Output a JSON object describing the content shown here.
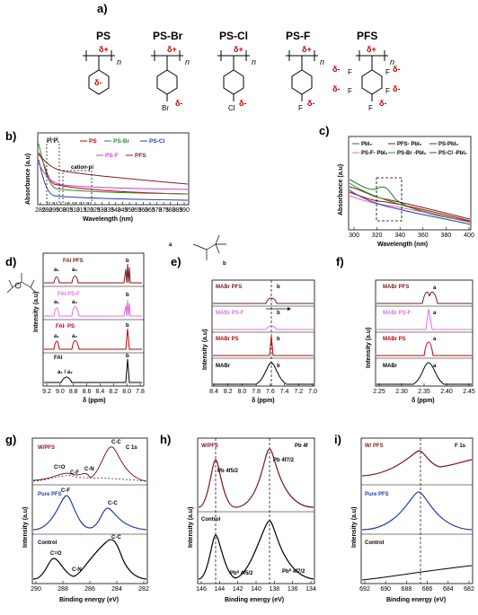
{
  "panels": {
    "a": "a)",
    "b": "b)",
    "c": "c)",
    "d": "d)",
    "e": "e)",
    "f": "f)",
    "g": "g)",
    "h": "h)",
    "i": "i)"
  },
  "structures": [
    {
      "name": "PS",
      "sub": "",
      "ring": ""
    },
    {
      "name": "PS-Br",
      "sub": "Br",
      "ring": ""
    },
    {
      "name": "PS-Cl",
      "sub": "Cl",
      "ring": ""
    },
    {
      "name": "PS-F",
      "sub": "F",
      "ring": ""
    },
    {
      "name": "PFS",
      "sub": "F",
      "ring": "F"
    }
  ],
  "delta_plus": "δ+",
  "delta_minus": "δ-",
  "n": "n",
  "b": {
    "ylabel": "Absorbance (a.u)",
    "xlabel": "Wavelength (nm)",
    "ticks": [
      "285",
      "290",
      "295",
      "300",
      "305",
      "310",
      "315",
      "320",
      "325",
      "330",
      "335",
      "340",
      "345",
      "350",
      "355",
      "360",
      "365",
      "370",
      "375",
      "380",
      "385",
      "390"
    ],
    "ann1": "pi-pi",
    "ann2": "cation-pi",
    "legend": [
      "PS",
      "PS-Br",
      "PS-Cl",
      "PS-F",
      "PFS"
    ],
    "colors": [
      "#c00000",
      "#2e8b2e",
      "#1f3fa8",
      "#d13fd1",
      "#8b1a1a"
    ]
  },
  "c": {
    "ylabel": "Absorbance (a.u)",
    "xlabel": "Wavelength (nm)",
    "ticks": [
      "300",
      "320",
      "340",
      "360",
      "380",
      "400"
    ],
    "legend": [
      "PbI₂",
      "PFS- PbI₂",
      "PS-PbI₂",
      "PS-F- PbI₂",
      "PS-Br -PbI₂",
      "PS-Cl -PbI₂"
    ],
    "colors": [
      "#1a7a1a",
      "#7a1a1a",
      "#c00000",
      "#e06ee0",
      "#2e8b2e",
      "#1f3fa8"
    ]
  },
  "d": {
    "ylabel": "Intensity (a.u)",
    "xlabel": "δ (ppm)",
    "ticks": [
      "9.2",
      "9.0",
      "8.8",
      "8.6",
      "8.4",
      "8.2",
      "8.0",
      "7.8"
    ],
    "traces": [
      "FAI PFS",
      "FAI PS-F",
      "FAI- PS",
      "FAI"
    ],
    "colors": [
      "#7a1a1a",
      "#e06ee0",
      "#c00000",
      "#000000"
    ],
    "peak_a1": "a₁",
    "peak_a2": "a₂",
    "peak_b": "b",
    "peak_a1a2": "a₁ / a₂"
  },
  "e": {
    "ylabel": "Intensity (a.u)",
    "xlabel": "δ (ppm)",
    "ticks": [
      "8.4",
      "8.2",
      "8.0",
      "7.8",
      "7.6",
      "7.4",
      "7.2",
      "7.0"
    ],
    "traces": [
      "MABr PFS",
      "MABr PS-F",
      "MABr PS",
      "MABr"
    ],
    "colors": [
      "#7a1a1a",
      "#e06ee0",
      "#c00000",
      "#000000"
    ],
    "peak": "b",
    "mol_a": "a",
    "mol_b": "b"
  },
  "f": {
    "ylabel": "Intensity (a.u)",
    "xlabel": "δ (ppm)",
    "ticks": [
      "2.25",
      "2.30",
      "2.35",
      "2.40",
      "2.45"
    ],
    "traces": [
      "MABr PFS",
      "MABr PS-F",
      "MABr PS",
      "MABr"
    ],
    "colors": [
      "#7a1a1a",
      "#e06ee0",
      "#c00000",
      "#000000"
    ],
    "peak": "a"
  },
  "g": {
    "ylabel": "Intensity (a.u)",
    "xlabel": "Binding energy (eV)",
    "ticks": [
      "290",
      "288",
      "286",
      "284",
      "282"
    ],
    "title": "C 1s",
    "traces": [
      "W/PFS",
      "Pure PFS",
      "Control"
    ],
    "colors": [
      "#7a1a1a",
      "#1f3fa8",
      "#000000"
    ],
    "labels": {
      "co": "C=O",
      "cf": "C-F",
      "cn": "C-N",
      "cc": "C-C"
    }
  },
  "h": {
    "ylabel": "Intensity (a.u)",
    "xlabel": "Binding energy (eV)",
    "ticks": [
      "146",
      "144",
      "142",
      "140",
      "138",
      "136",
      "134"
    ],
    "title": "Pb 4f",
    "traces": [
      "W/PFS",
      "Control"
    ],
    "colors": [
      "#7a1a1a",
      "#000000"
    ],
    "p1": "Pb 4f5/2",
    "p2": "Pb 4f7/2",
    "p3": "Pb⁰ 4f5/2",
    "p4": "Pb⁰ 4f7/2"
  },
  "i": {
    "ylabel": "Intensity (a.u)",
    "xlabel": "Binding energy (eV)",
    "ticks": [
      "692",
      "690",
      "688",
      "686",
      "684",
      "682"
    ],
    "title": "F 1s",
    "traces": [
      "W/ PFS",
      "Pure PFS",
      "Control"
    ],
    "colors": [
      "#7a1a1a",
      "#1f3fa8",
      "#000000"
    ]
  }
}
